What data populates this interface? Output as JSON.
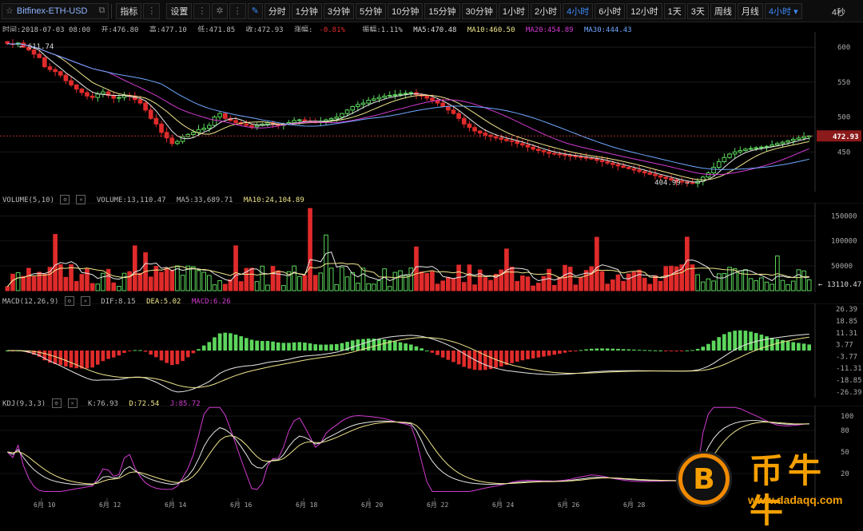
{
  "toolbar": {
    "symbol": "Bitfinex-ETH-USD",
    "indicators": "指标",
    "settings": "设置",
    "intervals": [
      "分时",
      "1分钟",
      "3分钟",
      "5分钟",
      "10分钟",
      "15分钟",
      "30分钟",
      "1小时",
      "2小时",
      "4小时",
      "6小时",
      "12小时",
      "1天",
      "3天",
      "周线",
      "月线",
      "4小时"
    ],
    "active_interval": "4小时",
    "latency": "4秒"
  },
  "ohlc": {
    "time": "时间:2018-07-03 08:00",
    "open": "开:476.80",
    "high": "高:477.10",
    "low": "低:471.85",
    "close": "收:472.93",
    "change_label": "涨幅:",
    "change": "-0.81%",
    "amplitude": "振幅:1.11%",
    "ma5": "MA5:470.48",
    "ma10": "MA10:460.50",
    "ma20": "MA20:454.89",
    "ma30": "MA30:444.43"
  },
  "volume_info": {
    "label": "VOLUME(5,10)",
    "volume": "VOLUME:13,110.47",
    "ma5": "MA5:33,689.71",
    "ma10": "MA10:24,104.89"
  },
  "macd_info": {
    "label": "MACD(12,26,9)",
    "dif": "DIF:8.15",
    "dea": "DEA:5.02",
    "macd": "MACD:6.26"
  },
  "kdj_info": {
    "label": "KDJ(9,3,3)",
    "k": "K:76.93",
    "d": "D:72.54",
    "j": "J:85.72"
  },
  "price_axis": {
    "ticks": [
      "600",
      "550",
      "500",
      "450"
    ],
    "current": "472.93",
    "max_label": "611.74",
    "min_label": "404.99"
  },
  "volume_axis": {
    "ticks": [
      "150000",
      "100000",
      "50000"
    ],
    "current": "13110.47"
  },
  "macd_axis": {
    "ticks": [
      "26.39",
      "18.85",
      "11.31",
      "3.77",
      "-3.77",
      "-11.31",
      "-18.85",
      "-26.39"
    ]
  },
  "kdj_axis": {
    "ticks": [
      "100",
      "80",
      "50",
      "20"
    ]
  },
  "dates": [
    "6月 10",
    "6月 12",
    "6月 14",
    "6月 16",
    "6月 18",
    "6月 20",
    "6月 22",
    "6月 24",
    "6月 26",
    "6月 28"
  ],
  "watermark": {
    "brand": "币牛牛",
    "url": "www.dadaqq.com",
    "coin_glyph": "B"
  },
  "colors": {
    "up": "#5cd65c",
    "down": "#e02b2b",
    "ma5": "#e8e8e8",
    "ma10": "#f0e68c",
    "ma20": "#d23bd2",
    "ma30": "#6fa8ff",
    "accent": "#3d8bfd"
  },
  "chart_data": {
    "type": "candlestick",
    "symbol": "Bitfinex-ETH-USD",
    "interval": "4小时",
    "ylim": [
      400,
      615
    ],
    "series_close": [
      605,
      604,
      606,
      600,
      596,
      590,
      585,
      572,
      568,
      565,
      560,
      552,
      546,
      540,
      535,
      530,
      528,
      533,
      536,
      531,
      527,
      528,
      531,
      530,
      525,
      520,
      510,
      498,
      490,
      478,
      470,
      462,
      465,
      472,
      475,
      478,
      482,
      484,
      488,
      500,
      505,
      498,
      495,
      492,
      490,
      488,
      486,
      488,
      490,
      492,
      490,
      488,
      490,
      492,
      495,
      496,
      494,
      493,
      492,
      494,
      496,
      498,
      500,
      505,
      510,
      515,
      518,
      520,
      524,
      526,
      528,
      530,
      531,
      532,
      533,
      534,
      535,
      532,
      530,
      527,
      524,
      520,
      515,
      510,
      505,
      498,
      490,
      485,
      480,
      477,
      474,
      472,
      470,
      468,
      466,
      465,
      462,
      460,
      457,
      454,
      452,
      450,
      448,
      447,
      446,
      445,
      444,
      443,
      442,
      441,
      440,
      438,
      436,
      434,
      432,
      430,
      428,
      426,
      424,
      422,
      420,
      418,
      416,
      414,
      412,
      410,
      408,
      407,
      406,
      405,
      408,
      414,
      420,
      428,
      436,
      442,
      447,
      450,
      452,
      454,
      455,
      456,
      457,
      458,
      460,
      462,
      464,
      466,
      468,
      470,
      472,
      473
    ]
  }
}
